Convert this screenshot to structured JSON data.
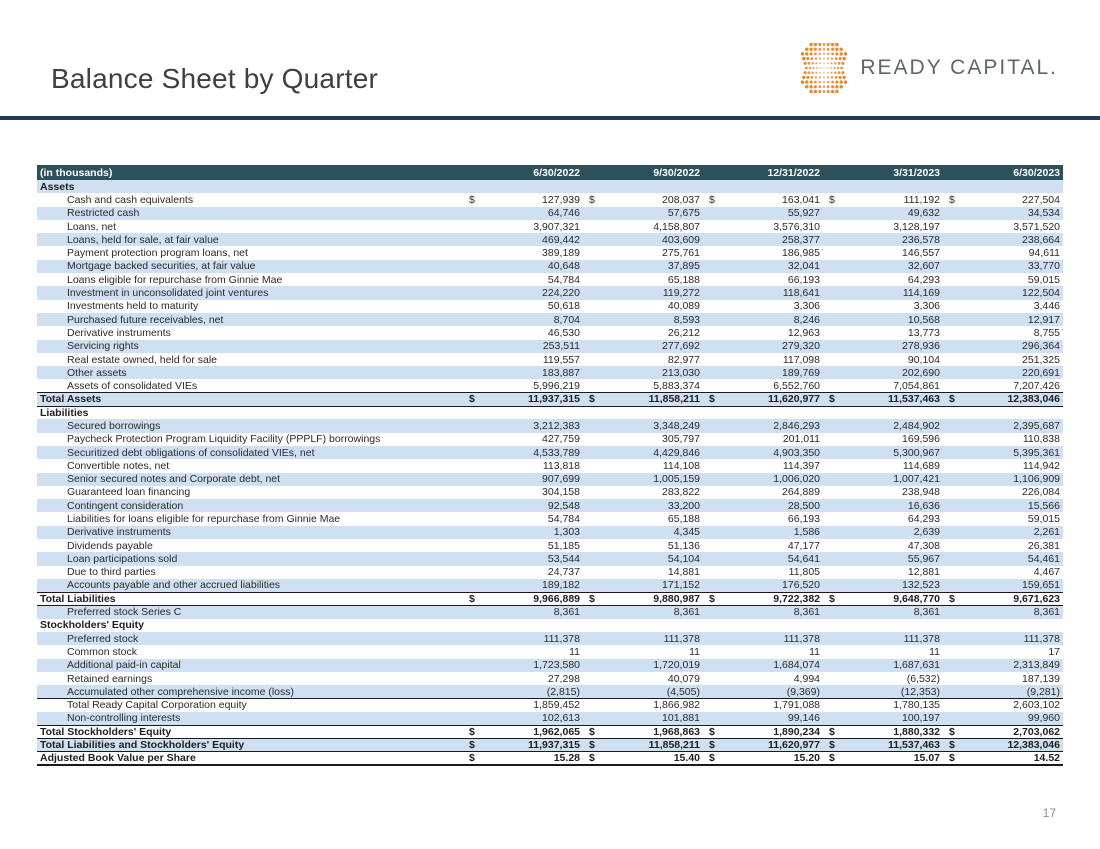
{
  "header": {
    "title": "Balance Sheet by Quarter",
    "logo_text": "READY CAPITAL.",
    "page_number": "17"
  },
  "colors": {
    "header_teal": "#2C515C",
    "row_blue": "#CEE0F1",
    "navy_rule": "#1F3864",
    "logo_orange": "#E6882C",
    "logo_text_gray": "#5C6670",
    "border_dark": "#1A1A1A"
  },
  "table": {
    "unit_label": "(in thousands)",
    "columns": [
      "6/30/2022",
      "9/30/2022",
      "12/31/2022",
      "3/31/2023",
      "6/30/2023"
    ],
    "rows": [
      {
        "label": "Assets",
        "type": "section",
        "shaded": true,
        "indent": false,
        "dollar": false,
        "values": null
      },
      {
        "label": "Cash and cash equivalents",
        "type": "data",
        "shaded": false,
        "indent": true,
        "dollar": true,
        "values": [
          "127,939",
          "208,037",
          "163,041",
          "111,192",
          "227,504"
        ]
      },
      {
        "label": "Restricted cash",
        "type": "data",
        "shaded": true,
        "indent": true,
        "dollar": false,
        "values": [
          "64,746",
          "57,675",
          "55,927",
          "49,632",
          "34,534"
        ]
      },
      {
        "label": "Loans, net",
        "type": "data",
        "shaded": false,
        "indent": true,
        "dollar": false,
        "values": [
          "3,907,321",
          "4,158,807",
          "3,576,310",
          "3,128,197",
          "3,571,520"
        ]
      },
      {
        "label": "Loans, held for sale, at fair value",
        "type": "data",
        "shaded": true,
        "indent": true,
        "dollar": false,
        "values": [
          "469,442",
          "403,609",
          "258,377",
          "236,578",
          "238,664"
        ]
      },
      {
        "label": "Payment protection program loans, net",
        "type": "data",
        "shaded": false,
        "indent": true,
        "dollar": false,
        "values": [
          "389,189",
          "275,761",
          "186,985",
          "146,557",
          "94,611"
        ]
      },
      {
        "label": "Mortgage backed securities, at fair value",
        "type": "data",
        "shaded": true,
        "indent": true,
        "dollar": false,
        "values": [
          "40,648",
          "37,895",
          "32,041",
          "32,607",
          "33,770"
        ]
      },
      {
        "label": "Loans eligible for repurchase from Ginnie Mae",
        "type": "data",
        "shaded": false,
        "indent": true,
        "dollar": false,
        "values": [
          "54,784",
          "65,188",
          "66,193",
          "64,293",
          "59,015"
        ]
      },
      {
        "label": "Investment in unconsolidated joint ventures",
        "type": "data",
        "shaded": true,
        "indent": true,
        "dollar": false,
        "values": [
          "224,220",
          "119,272",
          "118,641",
          "114,169",
          "122,504"
        ]
      },
      {
        "label": "Investments held to maturity",
        "type": "data",
        "shaded": false,
        "indent": true,
        "dollar": false,
        "values": [
          "50,618",
          "40,089",
          "3,306",
          "3,306",
          "3,446"
        ]
      },
      {
        "label": "Purchased future receivables, net",
        "type": "data",
        "shaded": true,
        "indent": true,
        "dollar": false,
        "values": [
          "8,704",
          "8,593",
          "8,246",
          "10,568",
          "12,917"
        ]
      },
      {
        "label": "Derivative instruments",
        "type": "data",
        "shaded": false,
        "indent": true,
        "dollar": false,
        "values": [
          "46,530",
          "26,212",
          "12,963",
          "13,773",
          "8,755"
        ]
      },
      {
        "label": "Servicing rights",
        "type": "data",
        "shaded": true,
        "indent": true,
        "dollar": false,
        "values": [
          "253,511",
          "277,692",
          "279,320",
          "278,936",
          "296,364"
        ]
      },
      {
        "label": "Real estate owned, held for sale",
        "type": "data",
        "shaded": false,
        "indent": true,
        "dollar": false,
        "values": [
          "119,557",
          "82,977",
          "117,098",
          "90,104",
          "251,325"
        ]
      },
      {
        "label": "Other assets",
        "type": "data",
        "shaded": true,
        "indent": true,
        "dollar": false,
        "values": [
          "183,887",
          "213,030",
          "189,769",
          "202,690",
          "220,691"
        ]
      },
      {
        "label": "Assets of consolidated VIEs",
        "type": "data",
        "shaded": false,
        "indent": true,
        "dollar": false,
        "values": [
          "5,996,219",
          "5,883,374",
          "6,552,760",
          "7,054,861",
          "7,207,426"
        ]
      },
      {
        "label": "Total Assets",
        "type": "total",
        "shaded": true,
        "indent": false,
        "dollar": true,
        "border_top": true,
        "border_bottom": true,
        "values": [
          "11,937,315",
          "11,858,211",
          "11,620,977",
          "11,537,463",
          "12,383,046"
        ]
      },
      {
        "label": "Liabilities",
        "type": "section",
        "shaded": false,
        "indent": false,
        "dollar": false,
        "values": null
      },
      {
        "label": "Secured borrowings",
        "type": "data",
        "shaded": true,
        "indent": true,
        "dollar": false,
        "values": [
          "3,212,383",
          "3,348,249",
          "2,846,293",
          "2,484,902",
          "2,395,687"
        ]
      },
      {
        "label": "Paycheck Protection Program Liquidity Facility (PPPLF) borrowings",
        "type": "data",
        "shaded": false,
        "indent": true,
        "dollar": false,
        "values": [
          "427,759",
          "305,797",
          "201,011",
          "169,596",
          "110,838"
        ]
      },
      {
        "label": "Securitized debt obligations of consolidated VIEs, net",
        "type": "data",
        "shaded": true,
        "indent": true,
        "dollar": false,
        "values": [
          "4,533,789",
          "4,429,846",
          "4,903,350",
          "5,300,967",
          "5,395,361"
        ]
      },
      {
        "label": "Convertible notes, net",
        "type": "data",
        "shaded": false,
        "indent": true,
        "dollar": false,
        "values": [
          "113,818",
          "114,108",
          "114,397",
          "114,689",
          "114,942"
        ]
      },
      {
        "label": "Senior secured notes and Corporate debt, net",
        "type": "data",
        "shaded": true,
        "indent": true,
        "dollar": false,
        "values": [
          "907,699",
          "1,005,159",
          "1,006,020",
          "1,007,421",
          "1,106,909"
        ]
      },
      {
        "label": "Guaranteed loan financing",
        "type": "data",
        "shaded": false,
        "indent": true,
        "dollar": false,
        "values": [
          "304,158",
          "283,822",
          "264,889",
          "238,948",
          "226,084"
        ]
      },
      {
        "label": "Contingent consideration",
        "type": "data",
        "shaded": true,
        "indent": true,
        "dollar": false,
        "values": [
          "92,548",
          "33,200",
          "28,500",
          "16,636",
          "15,566"
        ]
      },
      {
        "label": "Liabilities for loans eligible for repurchase from Ginnie Mae",
        "type": "data",
        "shaded": false,
        "indent": true,
        "dollar": false,
        "values": [
          "54,784",
          "65,188",
          "66,193",
          "64,293",
          "59,015"
        ]
      },
      {
        "label": "Derivative instruments",
        "type": "data",
        "shaded": true,
        "indent": true,
        "dollar": false,
        "values": [
          "1,303",
          "4,345",
          "1,586",
          "2,639",
          "2,261"
        ]
      },
      {
        "label": "Dividends payable",
        "type": "data",
        "shaded": false,
        "indent": true,
        "dollar": false,
        "values": [
          "51,185",
          "51,136",
          "47,177",
          "47,308",
          "26,381"
        ]
      },
      {
        "label": "Loan participations sold",
        "type": "data",
        "shaded": true,
        "indent": true,
        "dollar": false,
        "values": [
          "53,544",
          "54,104",
          "54,641",
          "55,967",
          "54,461"
        ]
      },
      {
        "label": "Due to third parties",
        "type": "data",
        "shaded": false,
        "indent": true,
        "dollar": false,
        "values": [
          "24,737",
          "14,881",
          "11,805",
          "12,881",
          "4,467"
        ]
      },
      {
        "label": "Accounts payable and other accrued liabilities",
        "type": "data",
        "shaded": true,
        "indent": true,
        "dollar": false,
        "values": [
          "189,182",
          "171,152",
          "176,520",
          "132,523",
          "159,651"
        ]
      },
      {
        "label": "Total Liabilities",
        "type": "total",
        "shaded": false,
        "indent": false,
        "dollar": true,
        "border_top": true,
        "border_bottom": true,
        "values": [
          "9,966,889",
          "9,880,987",
          "9,722,382",
          "9,648,770",
          "9,671,623"
        ]
      },
      {
        "label": "Preferred stock Series C",
        "type": "data",
        "shaded": true,
        "indent": true,
        "dollar": false,
        "values": [
          "8,361",
          "8,361",
          "8,361",
          "8,361",
          "8,361"
        ]
      },
      {
        "label": "Stockholders' Equity",
        "type": "section",
        "shaded": false,
        "indent": false,
        "dollar": false,
        "values": null
      },
      {
        "label": "Preferred stock",
        "type": "data",
        "shaded": true,
        "indent": true,
        "dollar": false,
        "values": [
          "111,378",
          "111,378",
          "111,378",
          "111,378",
          "111,378"
        ]
      },
      {
        "label": "Common stock",
        "type": "data",
        "shaded": false,
        "indent": true,
        "dollar": false,
        "values": [
          "11",
          "11",
          "11",
          "11",
          "17"
        ]
      },
      {
        "label": "Additional paid-in capital",
        "type": "data",
        "shaded": true,
        "indent": true,
        "dollar": false,
        "values": [
          "1,723,580",
          "1,720,019",
          "1,684,074",
          "1,687,631",
          "2,313,849"
        ]
      },
      {
        "label": "Retained earnings",
        "type": "data",
        "shaded": false,
        "indent": true,
        "dollar": false,
        "values": [
          "27,298",
          "40,079",
          "4,994",
          "(6,532)",
          "187,139"
        ]
      },
      {
        "label": "Accumulated other comprehensive income (loss)",
        "type": "data",
        "shaded": true,
        "indent": true,
        "dollar": false,
        "border_bottom": true,
        "values": [
          "(2,815)",
          "(4,505)",
          "(9,369)",
          "(12,353)",
          "(9,281)"
        ]
      },
      {
        "label": "Total Ready Capital Corporation equity",
        "type": "data",
        "shaded": false,
        "indent": true,
        "dollar": false,
        "values": [
          "1,859,452",
          "1,866,982",
          "1,791,088",
          "1,780,135",
          "2,603,102"
        ]
      },
      {
        "label": "Non-controlling interests",
        "type": "data",
        "shaded": true,
        "indent": true,
        "dollar": false,
        "values": [
          "102,613",
          "101,881",
          "99,146",
          "100,197",
          "99,960"
        ]
      },
      {
        "label": "Total Stockholders' Equity",
        "type": "total",
        "shaded": false,
        "indent": false,
        "dollar": true,
        "border_top": true,
        "border_bottom": true,
        "values": [
          "1,962,065",
          "1,968,863",
          "1,890,234",
          "1,880,332",
          "2,703,062"
        ]
      },
      {
        "label": "Total Liabilities and Stockholders' Equity",
        "type": "total",
        "shaded": true,
        "indent": false,
        "dollar": true,
        "border_bottom": true,
        "values": [
          "11,937,315",
          "11,858,211",
          "11,620,977",
          "11,537,463",
          "12,383,046"
        ]
      },
      {
        "label": "Adjusted Book Value per Share",
        "type": "total",
        "shaded": false,
        "indent": false,
        "dollar": true,
        "thick_bottom": true,
        "values": [
          "15.28",
          "15.40",
          "15.20",
          "15.07",
          "14.52"
        ]
      }
    ]
  }
}
